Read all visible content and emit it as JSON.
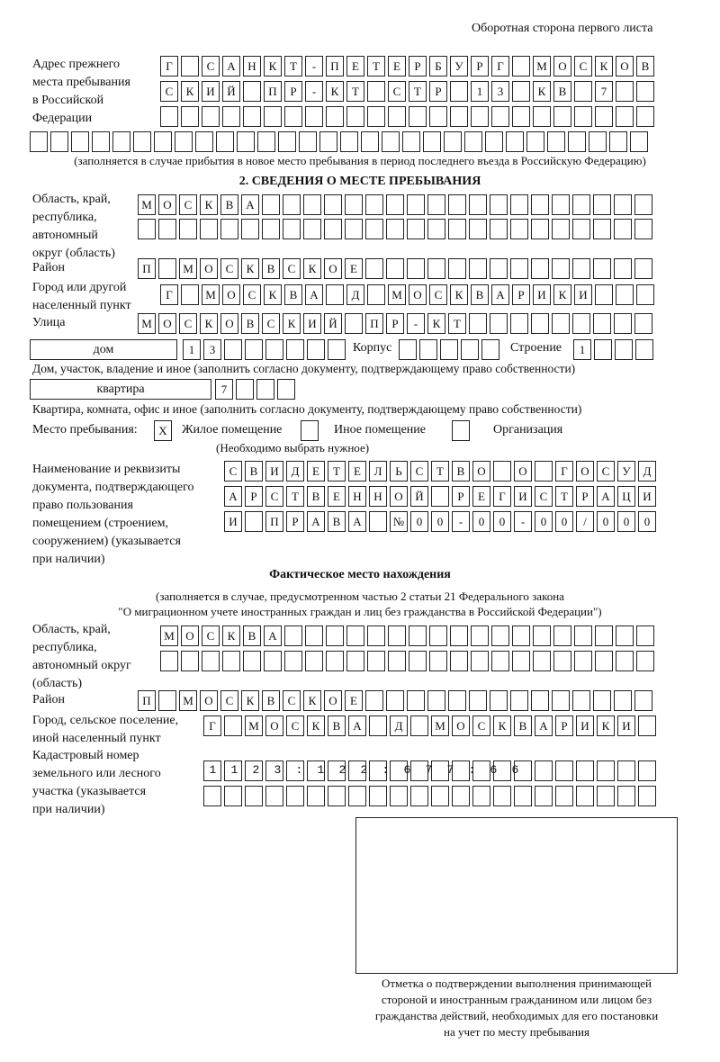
{
  "header": {
    "title": "Оборотная сторона первого листа"
  },
  "prev_address": {
    "label": [
      "Адрес прежнего",
      "места пребывания",
      "в Российской",
      "Федерации"
    ],
    "rows": [
      "Г САНКТ-ПЕТЕРБУРГ МОСКОВ",
      "СКИЙ ПР-КТ СТР 13 КВ 7  ",
      "                        ",
      "                              "
    ],
    "note": "(заполняется в случае прибытия в новое место пребывания в период последнего въезда в Российскую Федерацию)"
  },
  "section2": {
    "title": "2. СВЕДЕНИЯ О МЕСТЕ ПРЕБЫВАНИЯ",
    "region_label": [
      "Область, край,",
      "республика,",
      "автономный",
      "округ (область)"
    ],
    "region_rows": [
      "МОСКВА                   ",
      "                         "
    ],
    "district_label": "Район",
    "district_row": "П МОСКВСКОЕ              ",
    "city_label": [
      "Город или другой",
      "населенный пункт"
    ],
    "city_row": "Г МОСКВА Д МОСКВАРИКИ   ",
    "street_label": "Улица",
    "street_row": "МОСКОВСКИЙ ПР-КТ         ",
    "house_type": "дом",
    "house_row": "13      ",
    "korpus_label": "Корпус",
    "korpus_row": "     ",
    "building_label": "Строение",
    "building_row": "1   ",
    "house_note": "Дом, участок, владение и иное (заполнить согласно документу, подтверждающему право собственности)",
    "flat_type": "квартира",
    "flat_row": "7   ",
    "flat_note": "Квартира, комната, офис и иное (заполнить согласно документу, подтверждающему право собственности)",
    "place_label": "Место пребывания:",
    "place_options": [
      {
        "label": "Жилое помещение",
        "mark": "X"
      },
      {
        "label": "Иное помещение",
        "mark": ""
      },
      {
        "label": "Организация",
        "mark": ""
      }
    ],
    "place_note": "(Необходимо выбрать нужное)",
    "doc_label": [
      "Наименование и реквизиты",
      "документа, подтверждающего",
      "право пользования",
      "помещением (строением,",
      "сооружением) (указывается",
      "при наличии)"
    ],
    "doc_rows": [
      "СВИДЕТЕЛЬСТВО О ГОСУД",
      "АРСТВЕННОЙ РЕГИСТРАЦИ",
      "И ПРАВА №00-00-00/000"
    ]
  },
  "actual": {
    "title": "Фактическое место нахождения",
    "note": [
      "(заполняется в случае, предусмотренном частью 2 статьи 21 Федерального закона",
      "\"О миграционном учете иностранных граждан и лиц без гражданства в Российской Федерации\")"
    ],
    "region_label": [
      "Область, край,",
      "республика,",
      "автономный округ",
      "(область)"
    ],
    "region_rows": [
      "МОСКВА                  ",
      "                        "
    ],
    "district_label": "Район",
    "district_row": "П МОСКВСКОЕ              ",
    "city_label": [
      "Город, сельское поселение,",
      "иной населенный пункт"
    ],
    "city_row": "Г МОСКВА Д МОСКВАРИКИ ",
    "cadastre_label": [
      "Кадастровый номер",
      "земельного или лесного",
      "участка (указывается",
      "при наличии)"
    ],
    "cadastre_rows": [
      "1123:122:677:66       ",
      "                      "
    ]
  },
  "stamp": {
    "caption": [
      "Отметка о подтверждении выполнения принимающей",
      "стороной и иностранным гражданином или лицом без",
      "гражданства действий, необходимых для его постановки",
      "на учет по месту пребывания"
    ]
  }
}
